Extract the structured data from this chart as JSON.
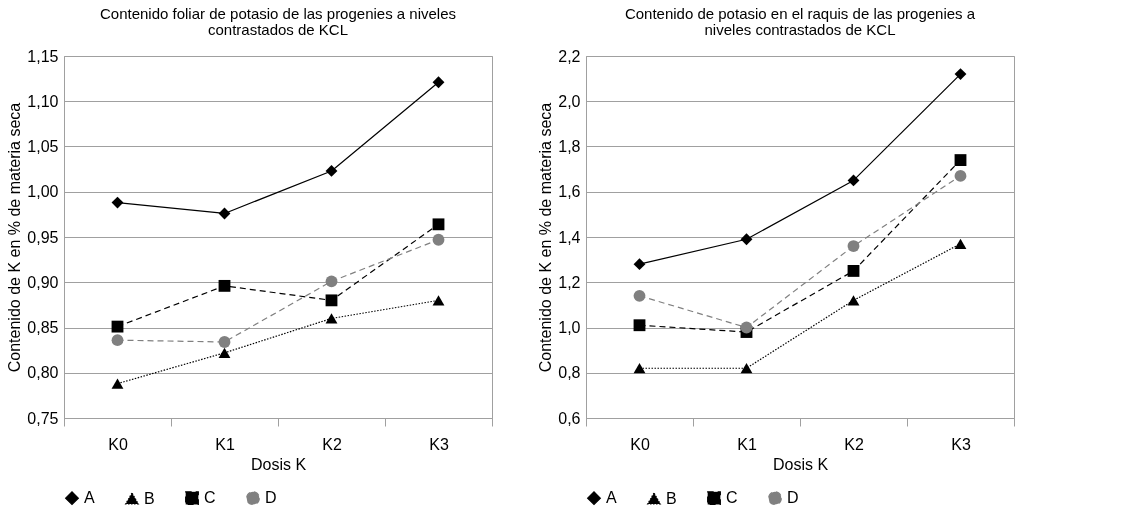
{
  "chart_data": [
    {
      "type": "line",
      "title": "Contenido foliar de potasio de las progenies a niveles contrastados de KCL",
      "xlabel": "Dosis K",
      "ylabel": "Contenido de K en % de materia seca",
      "categories": [
        "K0",
        "K1",
        "K2",
        "K3"
      ],
      "series": [
        {
          "name": "A",
          "color": "#000000",
          "marker": "diamond",
          "line_style": "solid",
          "values": [
            0.988,
            0.976,
            1.023,
            1.121
          ]
        },
        {
          "name": "B",
          "color": "#000000",
          "marker": "triangle",
          "line_style": "dotted",
          "values": [
            0.788,
            0.822,
            0.86,
            0.88
          ]
        },
        {
          "name": "C",
          "color": "#000000",
          "marker": "square",
          "line_style": "dashed",
          "values": [
            0.851,
            0.896,
            0.88,
            0.964
          ]
        },
        {
          "name": "D",
          "color": "#808080",
          "marker": "circle",
          "line_style": "dashed",
          "values": [
            0.836,
            0.834,
            0.901,
            0.947
          ]
        }
      ],
      "ylim": [
        0.75,
        1.15
      ],
      "yticks": [
        {
          "value": 0.75,
          "label": "0,75"
        },
        {
          "value": 0.8,
          "label": "0,80"
        },
        {
          "value": 0.85,
          "label": "0,85"
        },
        {
          "value": 0.9,
          "label": "0,90"
        },
        {
          "value": 0.95,
          "label": "0,95"
        },
        {
          "value": 1.0,
          "label": "1,00"
        },
        {
          "value": 1.05,
          "label": "1,05"
        },
        {
          "value": 1.1,
          "label": "1,10"
        },
        {
          "value": 1.15,
          "label": "1,15"
        }
      ],
      "grid": "y",
      "legend": "bottom"
    },
    {
      "type": "line",
      "title": "Contenido de potasio en el raquis de las progenies a niveles contrastados de KCL",
      "xlabel": "Dosis K",
      "ylabel": "Contenido de K en % de materia seca",
      "categories": [
        "K0",
        "K1",
        "K2",
        "K3"
      ],
      "series": [
        {
          "name": "A",
          "color": "#000000",
          "marker": "diamond",
          "line_style": "solid",
          "values": [
            1.28,
            1.39,
            1.65,
            2.12
          ]
        },
        {
          "name": "B",
          "color": "#000000",
          "marker": "triangle",
          "line_style": "dotted",
          "values": [
            0.82,
            0.82,
            1.12,
            1.37
          ]
        },
        {
          "name": "C",
          "color": "#000000",
          "marker": "square",
          "line_style": "dashed",
          "values": [
            1.01,
            0.98,
            1.25,
            1.74
          ]
        },
        {
          "name": "D",
          "color": "#808080",
          "marker": "circle",
          "line_style": "dashed",
          "values": [
            1.14,
            1.0,
            1.36,
            1.67
          ]
        }
      ],
      "ylim": [
        0.6,
        2.2
      ],
      "yticks": [
        {
          "value": 0.6,
          "label": "0,6"
        },
        {
          "value": 0.8,
          "label": "0,8"
        },
        {
          "value": 1.0,
          "label": "1,0"
        },
        {
          "value": 1.2,
          "label": "1,2"
        },
        {
          "value": 1.4,
          "label": "1,4"
        },
        {
          "value": 1.6,
          "label": "1,6"
        },
        {
          "value": 1.8,
          "label": "1,8"
        },
        {
          "value": 2.0,
          "label": "2,0"
        },
        {
          "value": 2.2,
          "label": "2,2"
        }
      ],
      "grid": "y",
      "legend": "bottom"
    }
  ]
}
